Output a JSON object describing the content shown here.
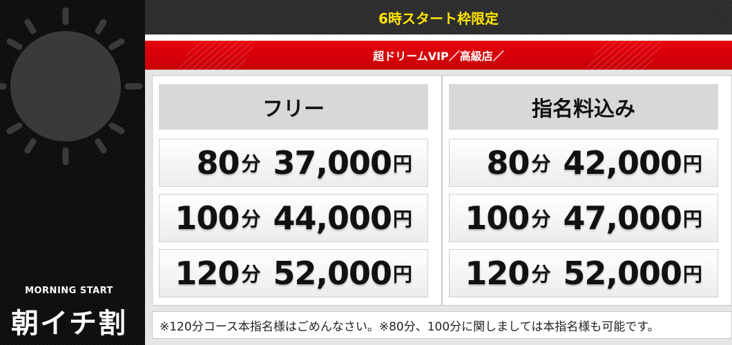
{
  "colors": {
    "accent_yellow": "#ffe600",
    "accent_red": "#e6000a",
    "dark": "#000000"
  },
  "sidebar": {
    "icon": "sun-icon",
    "subtitle": "MORNING START",
    "title": "朝イチ割"
  },
  "header": {
    "title": "6時スタート枠限定",
    "subtitle": "超ドリームVIP／高級店／"
  },
  "panels": [
    {
      "heading": "フリー",
      "rows": [
        {
          "minutes": "80",
          "unit": "分",
          "price": "37,000",
          "currency": "円"
        },
        {
          "minutes": "100",
          "unit": "分",
          "price": "44,000",
          "currency": "円"
        },
        {
          "minutes": "120",
          "unit": "分",
          "price": "52,000",
          "currency": "円"
        }
      ]
    },
    {
      "heading": "指名料込み",
      "rows": [
        {
          "minutes": "80",
          "unit": "分",
          "price": "42,000",
          "currency": "円"
        },
        {
          "minutes": "100",
          "unit": "分",
          "price": "47,000",
          "currency": "円"
        },
        {
          "minutes": "120",
          "unit": "分",
          "price": "52,000",
          "currency": "円"
        }
      ]
    }
  ],
  "note": "※120分コース本指名様はごめんなさい。※80分、100分に関しましては本指名様も可能です。"
}
